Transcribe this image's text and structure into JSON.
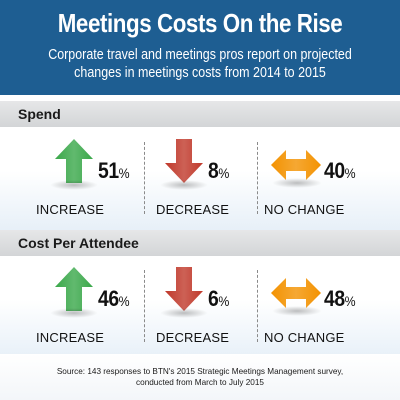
{
  "header": {
    "title": "Meetings Costs On the Rise",
    "subtitle": "Corporate travel and meetings pros report on projected changes in meetings costs from 2014 to 2015"
  },
  "colors": {
    "header_bg": "#1e5e92",
    "increase": "#3aa84a",
    "decrease": "#c0392b",
    "no_change": "#f39200"
  },
  "chart_data": [
    {
      "type": "table",
      "title": "Spend",
      "categories": [
        "INCREASE",
        "DECREASE",
        "NO CHANGE"
      ],
      "values": [
        51,
        8,
        40
      ],
      "unit": "%",
      "icons": [
        "arrow-up-icon",
        "arrow-down-icon",
        "arrow-left-right-icon"
      ]
    },
    {
      "type": "table",
      "title": "Cost Per Attendee",
      "categories": [
        "INCREASE",
        "DECREASE",
        "NO CHANGE"
      ],
      "values": [
        46,
        6,
        48
      ],
      "unit": "%",
      "icons": [
        "arrow-up-icon",
        "arrow-down-icon",
        "arrow-left-right-icon"
      ]
    }
  ],
  "source": {
    "line1": "Source: 143 responses to BTN's 2015 Strategic Meetings Management survey,",
    "line2": "conducted from March to July 2015"
  }
}
